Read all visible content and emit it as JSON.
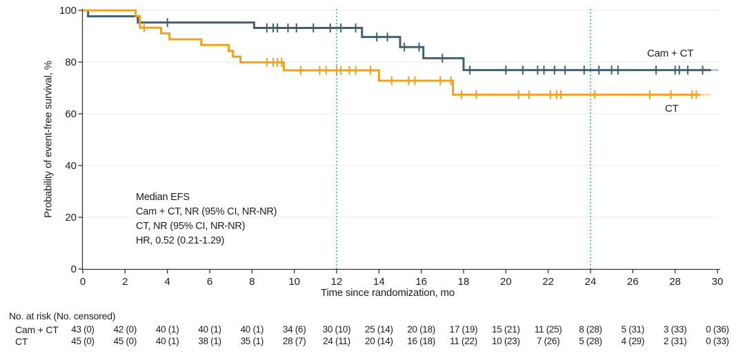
{
  "chart_data": {
    "type": "line",
    "variant": "kaplan_meier_step",
    "title": "",
    "xlabel": "Time since randomization, mo",
    "ylabel": "Probability of event-free survival, %",
    "xlim": [
      0,
      30
    ],
    "ylim": [
      0,
      100
    ],
    "x_ticks": [
      0,
      2,
      4,
      6,
      8,
      10,
      12,
      14,
      16,
      18,
      20,
      22,
      24,
      26,
      28,
      30
    ],
    "y_ticks": [
      0,
      20,
      40,
      60,
      80,
      100
    ],
    "gridline_values": [
      20,
      40,
      60,
      80,
      100
    ],
    "grid_on": true,
    "grid_color": "#E9E9E9",
    "axis_color": "#333333",
    "text_color": "#1C1C1C",
    "reference_lines_x": [
      12,
      24
    ],
    "reference_line_color": "#54C2E8",
    "legend_position": "labels-at-line-ends",
    "series": [
      {
        "name": "Cam + CT",
        "label": "Cam + CT",
        "color": "#41606E",
        "steps": [
          [
            0,
            100
          ],
          [
            0.25,
            97.7
          ],
          [
            2.6,
            95.3
          ],
          [
            8.1,
            93.2
          ],
          [
            13.2,
            89.7
          ],
          [
            15.0,
            85.8
          ],
          [
            16.1,
            81.5
          ],
          [
            18.0,
            76.9
          ]
        ],
        "end_month": 29.7,
        "tail_month": 30.05,
        "censor_marks": [
          [
            4,
            95.3
          ],
          [
            8.7,
            93.2
          ],
          [
            9,
            93.2
          ],
          [
            9.2,
            93.2
          ],
          [
            9.7,
            93.2
          ],
          [
            10.1,
            93.2
          ],
          [
            10.9,
            93.2
          ],
          [
            11.7,
            93.2
          ],
          [
            12.2,
            93.2
          ],
          [
            12.9,
            93.2
          ],
          [
            13.9,
            89.7
          ],
          [
            14.4,
            89.7
          ],
          [
            15.2,
            85.8
          ],
          [
            15.9,
            85.8
          ],
          [
            17,
            81.5
          ],
          [
            18.3,
            76.9
          ],
          [
            20,
            76.9
          ],
          [
            20.8,
            76.9
          ],
          [
            21.5,
            76.9
          ],
          [
            21.8,
            76.9
          ],
          [
            22.3,
            76.9
          ],
          [
            22.8,
            76.9
          ],
          [
            23.7,
            76.9
          ],
          [
            24.4,
            76.9
          ],
          [
            25,
            76.9
          ],
          [
            25.3,
            76.9
          ],
          [
            27.1,
            76.9
          ],
          [
            28,
            76.9
          ],
          [
            28.2,
            76.9
          ],
          [
            28.6,
            76.9
          ],
          [
            29.3,
            76.9
          ]
        ]
      },
      {
        "name": "CT",
        "label": "CT",
        "color": "#F0A11E",
        "steps": [
          [
            0,
            100
          ],
          [
            2.5,
            97.8
          ],
          [
            2.7,
            93.3
          ],
          [
            3.7,
            91.1
          ],
          [
            4.1,
            88.8
          ],
          [
            5.6,
            86.6
          ],
          [
            6.9,
            84.3
          ],
          [
            7.1,
            82.1
          ],
          [
            7.45,
            79.9
          ],
          [
            9.5,
            76.8
          ],
          [
            14,
            72.8
          ],
          [
            17.5,
            67.4
          ]
        ],
        "end_month": 29.2,
        "tail_month": 29.7,
        "censor_marks": [
          [
            2.9,
            93.3
          ],
          [
            8.7,
            79.9
          ],
          [
            9,
            79.9
          ],
          [
            9.2,
            79.9
          ],
          [
            9.4,
            79.9
          ],
          [
            10.3,
            76.8
          ],
          [
            11.2,
            76.8
          ],
          [
            11.5,
            76.8
          ],
          [
            12,
            76.8
          ],
          [
            12.2,
            76.8
          ],
          [
            12.6,
            76.8
          ],
          [
            12.9,
            76.8
          ],
          [
            13.6,
            76.8
          ],
          [
            14.6,
            72.8
          ],
          [
            15.4,
            72.8
          ],
          [
            15.7,
            72.8
          ],
          [
            16.9,
            72.8
          ],
          [
            17.4,
            72.8
          ],
          [
            17.9,
            67.4
          ],
          [
            18.6,
            67.4
          ],
          [
            20.6,
            67.4
          ],
          [
            21.1,
            67.4
          ],
          [
            22.1,
            67.4
          ],
          [
            22.4,
            67.4
          ],
          [
            22.6,
            67.4
          ],
          [
            24.2,
            67.4
          ],
          [
            26.8,
            67.4
          ],
          [
            27.8,
            67.4
          ],
          [
            28.8,
            67.4
          ],
          [
            29,
            67.4
          ]
        ]
      }
    ],
    "annotation": {
      "lines": [
        "Median EFS",
        "Cam + CT, NR (95% CI, NR-NR)",
        "CT, NR (95% CI, NR-NR)",
        "HR, 0.52 (0.21-1.29)"
      ]
    }
  },
  "risk_table": {
    "header": "No. at risk (No. censored)",
    "time_points": [
      0,
      2,
      4,
      6,
      8,
      10,
      12,
      14,
      16,
      18,
      20,
      22,
      24,
      26,
      28,
      30
    ],
    "rows": [
      {
        "label": "Cam + CT",
        "values": [
          "43 (0)",
          "42 (0)",
          "40 (1)",
          "40 (1)",
          "40 (1)",
          "34 (6)",
          "30 (10)",
          "25 (14)",
          "20 (18)",
          "17 (19)",
          "15 (21)",
          "11 (25)",
          "8 (28)",
          "5 (31)",
          "3 (33)",
          "0 (36)"
        ]
      },
      {
        "label": "CT",
        "values": [
          "45 (0)",
          "45 (0)",
          "40 (1)",
          "38 (1)",
          "35 (1)",
          "28 (7)",
          "24 (11)",
          "20 (14)",
          "16 (18)",
          "11 (22)",
          "10 (23)",
          "7 (26)",
          "5 (28)",
          "4 (29)",
          "2 (31)",
          "0 (33)"
        ]
      }
    ]
  }
}
